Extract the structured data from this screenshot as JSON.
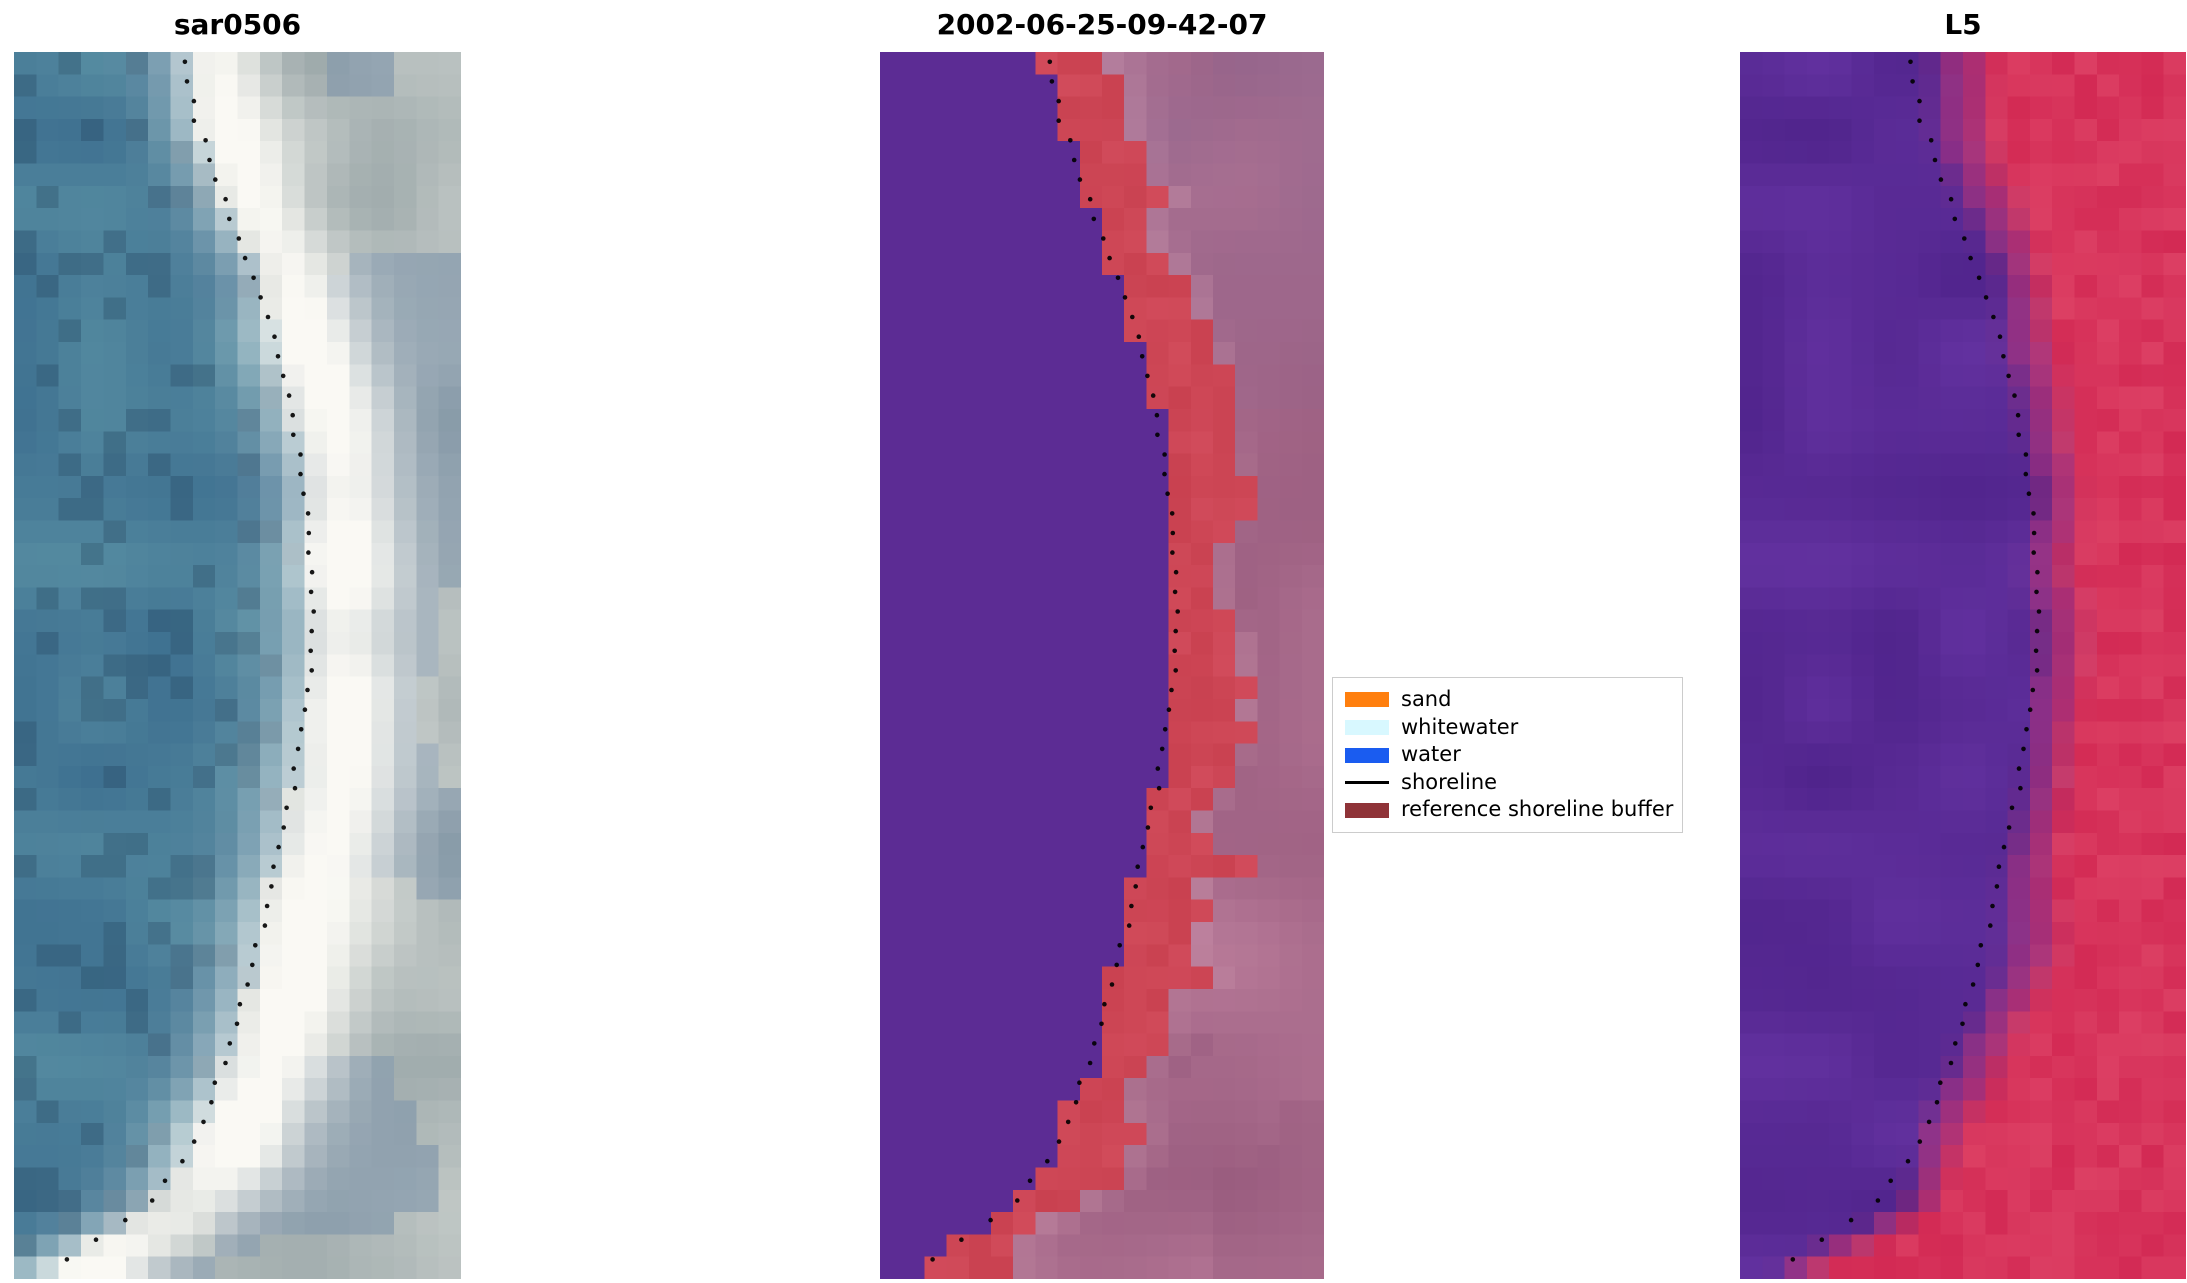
{
  "figure": {
    "background": "#ffffff"
  },
  "chart_data": {
    "type": "image-comparison",
    "description": "Shoreline detection figure with three pixelated image panels (SAR image, classified image with reference shoreline buffer, Landsat 5 image), each overlaid with a dotted detected shoreline; legend describes classes.",
    "grid": {
      "cols": 20,
      "rows": 55
    },
    "shoreline_curve": {
      "style": "dotted",
      "color": "#000000",
      "points": [
        [
          0.0,
          0.375
        ],
        [
          0.06,
          0.41
        ],
        [
          0.12,
          0.47
        ],
        [
          0.2,
          0.555
        ],
        [
          0.28,
          0.615
        ],
        [
          0.36,
          0.65
        ],
        [
          0.45,
          0.665
        ],
        [
          0.52,
          0.66
        ],
        [
          0.6,
          0.625
        ],
        [
          0.68,
          0.575
        ],
        [
          0.76,
          0.525
        ],
        [
          0.84,
          0.455
        ],
        [
          0.9,
          0.385
        ],
        [
          0.94,
          0.3
        ],
        [
          0.97,
          0.17
        ],
        [
          1.0,
          0.05
        ]
      ]
    },
    "panels": [
      {
        "title": "sar0506",
        "kind": "sar",
        "palette": {
          "water_dark": "#3e7090",
          "water_light": "#548aa0",
          "band": "#faf9f4",
          "land": "#97a4a6",
          "land_blue": "#7890a8"
        }
      },
      {
        "title": "2002-06-25-09-42-07",
        "kind": "classified",
        "palette": {
          "water_class": "#5c2c94",
          "buffer": "#c94150",
          "bg_light": "#c183a0",
          "bg_dark": "#96597c",
          "bg_grey": "#8b6590"
        }
      },
      {
        "title": "L5",
        "kind": "l5",
        "palette": {
          "purple": "#62319f",
          "purple_dark": "#50248c",
          "red": "#d32a54",
          "red_light": "#e0486a",
          "magenta": "#a23386"
        }
      }
    ],
    "legend": {
      "items": [
        {
          "label": "sand",
          "color": "#ff7f0e",
          "marker": "patch"
        },
        {
          "label": "whitewater",
          "color": "#d8f8ff",
          "marker": "patch"
        },
        {
          "label": "water",
          "color": "#1a5cf0",
          "marker": "patch"
        },
        {
          "label": "shoreline",
          "color": "#000000",
          "marker": "line"
        },
        {
          "label": "reference shoreline buffer",
          "color": "#8f3338",
          "marker": "patch"
        }
      ]
    }
  }
}
